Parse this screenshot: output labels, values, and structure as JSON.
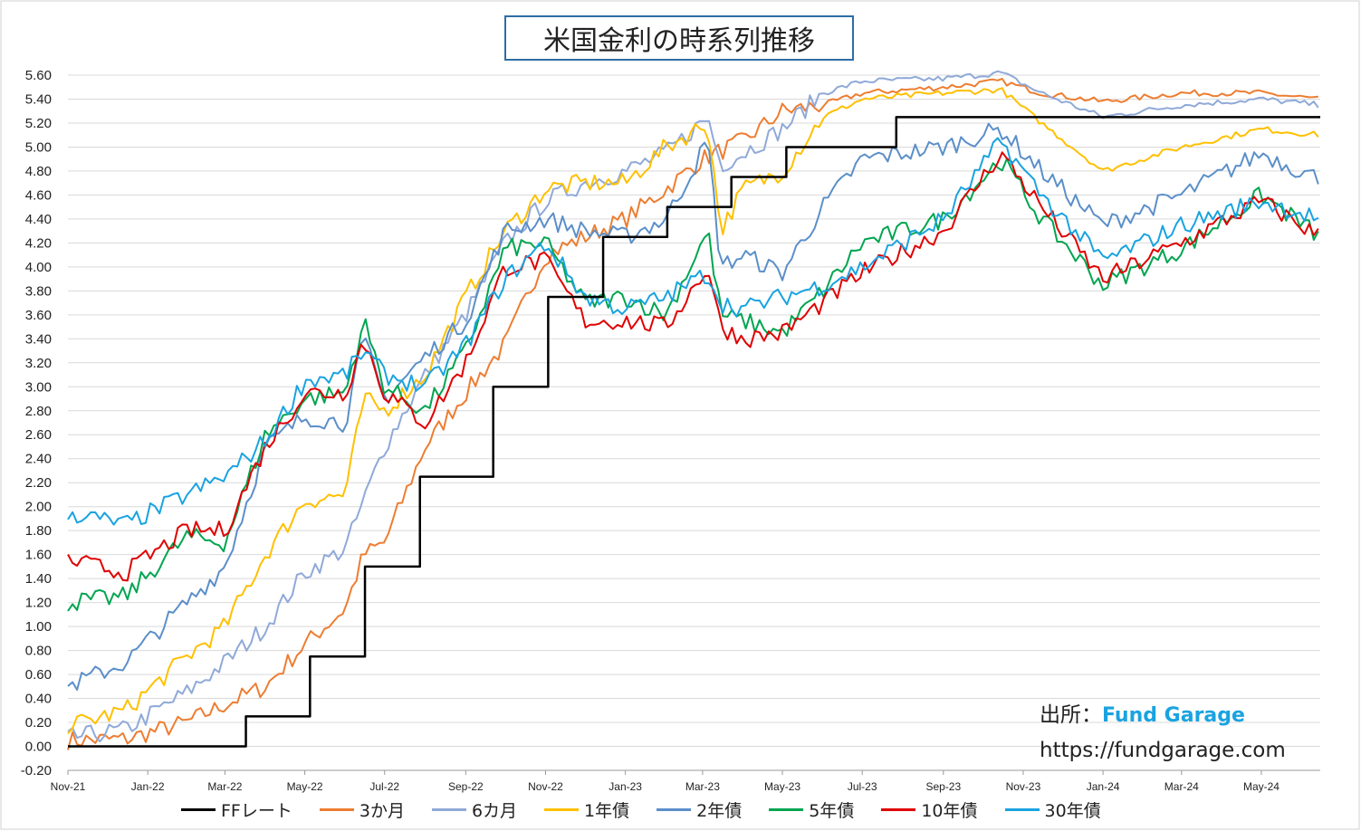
{
  "chart_data": {
    "type": "line",
    "title": "米国金利の時系列推移",
    "xlabel": "",
    "ylabel": "",
    "ylim": [
      -0.2,
      5.6
    ],
    "y_ticks": [
      "5.60",
      "5.40",
      "5.20",
      "5.00",
      "4.80",
      "4.60",
      "4.40",
      "4.20",
      "4.00",
      "3.80",
      "3.60",
      "3.40",
      "3.20",
      "3.00",
      "2.80",
      "2.60",
      "2.40",
      "2.20",
      "2.00",
      "1.80",
      "1.60",
      "1.40",
      "1.20",
      "1.00",
      "0.80",
      "0.60",
      "0.40",
      "0.20",
      "0.00",
      "-0.20"
    ],
    "x_ticks": [
      "Nov-21",
      "Jan-22",
      "Mar-22",
      "May-22",
      "Jul-22",
      "Sep-22",
      "Nov-22",
      "Jan-23",
      "Mar-23",
      "May-23",
      "Jul-23",
      "Sep-23",
      "Nov-23",
      "Jan-24",
      "Mar-24",
      "May-24"
    ],
    "x_end": "2024-06-15",
    "grid": true,
    "legend_position": "bottom",
    "series": [
      {
        "name": "FFレート",
        "color": "#000000",
        "step": true,
        "points": [
          [
            "2021-11-01",
            0.0
          ],
          [
            "2022-03-17",
            0.25
          ],
          [
            "2022-05-05",
            0.75
          ],
          [
            "2022-06-16",
            1.5
          ],
          [
            "2022-07-28",
            2.25
          ],
          [
            "2022-09-22",
            3.0
          ],
          [
            "2022-11-03",
            3.75
          ],
          [
            "2022-12-15",
            4.25
          ],
          [
            "2023-02-02",
            4.5
          ],
          [
            "2023-03-23",
            4.75
          ],
          [
            "2023-05-04",
            5.0
          ],
          [
            "2023-07-27",
            5.25
          ],
          [
            "2024-06-15",
            5.25
          ]
        ]
      },
      {
        "name": "3か月",
        "color": "#ed7d31",
        "points": [
          [
            "2021-11-01",
            0.05
          ],
          [
            "2021-12-15",
            0.06
          ],
          [
            "2022-01-31",
            0.2
          ],
          [
            "2022-03-01",
            0.35
          ],
          [
            "2022-04-01",
            0.5
          ],
          [
            "2022-05-01",
            0.85
          ],
          [
            "2022-06-01",
            1.15
          ],
          [
            "2022-06-15",
            1.6
          ],
          [
            "2022-07-01",
            1.7
          ],
          [
            "2022-08-01",
            2.5
          ],
          [
            "2022-09-01",
            2.95
          ],
          [
            "2022-10-01",
            3.35
          ],
          [
            "2022-11-01",
            4.1
          ],
          [
            "2022-12-01",
            4.25
          ],
          [
            "2023-01-01",
            4.4
          ],
          [
            "2023-02-01",
            4.65
          ],
          [
            "2023-03-01",
            4.9
          ],
          [
            "2023-04-01",
            5.05
          ],
          [
            "2023-05-01",
            5.3
          ],
          [
            "2023-06-01",
            5.35
          ],
          [
            "2023-07-01",
            5.45
          ],
          [
            "2023-09-01",
            5.5
          ],
          [
            "2023-10-15",
            5.55
          ],
          [
            "2023-11-15",
            5.45
          ],
          [
            "2024-01-01",
            5.38
          ],
          [
            "2024-03-01",
            5.45
          ],
          [
            "2024-05-01",
            5.45
          ],
          [
            "2024-06-15",
            5.4
          ]
        ]
      },
      {
        "name": "6カ月",
        "color": "#8fa9d8",
        "points": [
          [
            "2021-11-01",
            0.07
          ],
          [
            "2021-12-15",
            0.14
          ],
          [
            "2022-01-31",
            0.45
          ],
          [
            "2022-03-01",
            0.7
          ],
          [
            "2022-04-01",
            1.0
          ],
          [
            "2022-05-01",
            1.45
          ],
          [
            "2022-06-01",
            1.65
          ],
          [
            "2022-06-15",
            2.05
          ],
          [
            "2022-07-01",
            2.5
          ],
          [
            "2022-08-01",
            3.1
          ],
          [
            "2022-09-01",
            3.6
          ],
          [
            "2022-10-01",
            4.2
          ],
          [
            "2022-11-01",
            4.55
          ],
          [
            "2022-12-01",
            4.7
          ],
          [
            "2023-01-01",
            4.8
          ],
          [
            "2023-02-01",
            4.95
          ],
          [
            "2023-03-05",
            5.25
          ],
          [
            "2023-03-15",
            4.85
          ],
          [
            "2023-04-01",
            4.95
          ],
          [
            "2023-05-01",
            5.15
          ],
          [
            "2023-06-01",
            5.45
          ],
          [
            "2023-07-01",
            5.55
          ],
          [
            "2023-09-01",
            5.57
          ],
          [
            "2023-10-15",
            5.62
          ],
          [
            "2023-11-15",
            5.45
          ],
          [
            "2024-01-01",
            5.25
          ],
          [
            "2024-03-01",
            5.35
          ],
          [
            "2024-05-01",
            5.4
          ],
          [
            "2024-06-15",
            5.35
          ]
        ]
      },
      {
        "name": "1年債",
        "color": "#ffc000",
        "points": [
          [
            "2021-11-01",
            0.17
          ],
          [
            "2021-12-15",
            0.3
          ],
          [
            "2022-01-31",
            0.75
          ],
          [
            "2022-03-01",
            1.0
          ],
          [
            "2022-04-01",
            1.6
          ],
          [
            "2022-05-01",
            2.05
          ],
          [
            "2022-06-01",
            2.1
          ],
          [
            "2022-06-15",
            2.9
          ],
          [
            "2022-07-01",
            2.8
          ],
          [
            "2022-08-01",
            3.1
          ],
          [
            "2022-09-01",
            3.75
          ],
          [
            "2022-10-01",
            4.3
          ],
          [
            "2022-11-01",
            4.65
          ],
          [
            "2022-12-01",
            4.7
          ],
          [
            "2023-01-01",
            4.7
          ],
          [
            "2023-02-01",
            5.0
          ],
          [
            "2023-03-05",
            5.2
          ],
          [
            "2023-03-15",
            4.3
          ],
          [
            "2023-04-01",
            4.65
          ],
          [
            "2023-05-01",
            4.8
          ],
          [
            "2023-06-01",
            5.25
          ],
          [
            "2023-07-01",
            5.4
          ],
          [
            "2023-09-01",
            5.45
          ],
          [
            "2023-10-15",
            5.48
          ],
          [
            "2023-11-15",
            5.2
          ],
          [
            "2024-01-01",
            4.8
          ],
          [
            "2024-03-01",
            5.0
          ],
          [
            "2024-05-01",
            5.15
          ],
          [
            "2024-06-15",
            5.1
          ]
        ]
      },
      {
        "name": "2年債",
        "color": "#5b8fc9",
        "points": [
          [
            "2021-11-01",
            0.5
          ],
          [
            "2021-12-15",
            0.7
          ],
          [
            "2022-01-31",
            1.2
          ],
          [
            "2022-03-01",
            1.5
          ],
          [
            "2022-04-01",
            2.5
          ],
          [
            "2022-05-01",
            2.75
          ],
          [
            "2022-06-01",
            2.7
          ],
          [
            "2022-06-15",
            3.4
          ],
          [
            "2022-07-01",
            2.9
          ],
          [
            "2022-08-01",
            3.25
          ],
          [
            "2022-09-01",
            3.55
          ],
          [
            "2022-10-01",
            4.3
          ],
          [
            "2022-11-01",
            4.4
          ],
          [
            "2022-12-01",
            4.3
          ],
          [
            "2023-01-01",
            4.25
          ],
          [
            "2023-02-01",
            4.4
          ],
          [
            "2023-03-05",
            5.05
          ],
          [
            "2023-03-15",
            4.0
          ],
          [
            "2023-04-01",
            4.1
          ],
          [
            "2023-05-01",
            3.95
          ],
          [
            "2023-06-01",
            4.5
          ],
          [
            "2023-07-01",
            4.9
          ],
          [
            "2023-09-01",
            5.0
          ],
          [
            "2023-10-15",
            5.15
          ],
          [
            "2023-11-15",
            4.8
          ],
          [
            "2024-01-01",
            4.35
          ],
          [
            "2024-03-01",
            4.6
          ],
          [
            "2024-05-01",
            4.95
          ],
          [
            "2024-06-15",
            4.73
          ]
        ]
      },
      {
        "name": "5年債",
        "color": "#00a550",
        "points": [
          [
            "2021-11-01",
            1.2
          ],
          [
            "2021-12-15",
            1.25
          ],
          [
            "2022-01-31",
            1.75
          ],
          [
            "2022-03-01",
            1.7
          ],
          [
            "2022-04-01",
            2.6
          ],
          [
            "2022-05-01",
            2.9
          ],
          [
            "2022-06-01",
            2.95
          ],
          [
            "2022-06-15",
            3.55
          ],
          [
            "2022-07-01",
            3.0
          ],
          [
            "2022-08-01",
            2.8
          ],
          [
            "2022-09-01",
            3.3
          ],
          [
            "2022-10-01",
            4.15
          ],
          [
            "2022-11-01",
            4.2
          ],
          [
            "2022-12-01",
            3.7
          ],
          [
            "2023-01-01",
            3.75
          ],
          [
            "2023-02-01",
            3.6
          ],
          [
            "2023-03-05",
            4.3
          ],
          [
            "2023-03-15",
            3.6
          ],
          [
            "2023-04-01",
            3.55
          ],
          [
            "2023-05-01",
            3.45
          ],
          [
            "2023-06-01",
            3.8
          ],
          [
            "2023-07-01",
            4.2
          ],
          [
            "2023-09-01",
            4.4
          ],
          [
            "2023-10-15",
            4.9
          ],
          [
            "2023-11-15",
            4.4
          ],
          [
            "2024-01-01",
            3.85
          ],
          [
            "2024-03-01",
            4.15
          ],
          [
            "2024-05-01",
            4.6
          ],
          [
            "2024-06-15",
            4.25
          ]
        ]
      },
      {
        "name": "10年債",
        "color": "#e00000",
        "points": [
          [
            "2021-11-01",
            1.55
          ],
          [
            "2021-12-15",
            1.45
          ],
          [
            "2022-01-31",
            1.8
          ],
          [
            "2022-03-01",
            1.8
          ],
          [
            "2022-04-01",
            2.5
          ],
          [
            "2022-05-01",
            2.95
          ],
          [
            "2022-06-01",
            2.95
          ],
          [
            "2022-06-15",
            3.4
          ],
          [
            "2022-07-01",
            2.95
          ],
          [
            "2022-08-01",
            2.7
          ],
          [
            "2022-09-01",
            3.2
          ],
          [
            "2022-10-01",
            4.0
          ],
          [
            "2022-11-01",
            4.05
          ],
          [
            "2022-12-01",
            3.55
          ],
          [
            "2023-01-01",
            3.55
          ],
          [
            "2023-02-01",
            3.5
          ],
          [
            "2023-03-05",
            4.0
          ],
          [
            "2023-03-15",
            3.5
          ],
          [
            "2023-04-01",
            3.4
          ],
          [
            "2023-05-01",
            3.45
          ],
          [
            "2023-06-01",
            3.7
          ],
          [
            "2023-07-01",
            3.95
          ],
          [
            "2023-09-01",
            4.3
          ],
          [
            "2023-10-15",
            4.95
          ],
          [
            "2023-11-15",
            4.5
          ],
          [
            "2024-01-01",
            3.9
          ],
          [
            "2024-03-01",
            4.2
          ],
          [
            "2024-05-01",
            4.55
          ],
          [
            "2024-06-15",
            4.25
          ]
        ]
      },
      {
        "name": "30年債",
        "color": "#1aa3e0",
        "points": [
          [
            "2021-11-01",
            1.95
          ],
          [
            "2021-12-15",
            1.85
          ],
          [
            "2022-01-31",
            2.1
          ],
          [
            "2022-03-01",
            2.25
          ],
          [
            "2022-04-01",
            2.55
          ],
          [
            "2022-05-01",
            3.05
          ],
          [
            "2022-06-01",
            3.1
          ],
          [
            "2022-06-15",
            3.3
          ],
          [
            "2022-07-01",
            3.1
          ],
          [
            "2022-08-01",
            3.0
          ],
          [
            "2022-09-01",
            3.35
          ],
          [
            "2022-10-01",
            3.9
          ],
          [
            "2022-11-01",
            4.2
          ],
          [
            "2022-12-01",
            3.75
          ],
          [
            "2023-01-01",
            3.65
          ],
          [
            "2023-02-01",
            3.75
          ],
          [
            "2023-03-05",
            3.95
          ],
          [
            "2023-03-15",
            3.7
          ],
          [
            "2023-04-01",
            3.65
          ],
          [
            "2023-05-01",
            3.75
          ],
          [
            "2023-06-01",
            3.85
          ],
          [
            "2023-07-01",
            4.0
          ],
          [
            "2023-09-01",
            4.4
          ],
          [
            "2023-10-15",
            5.05
          ],
          [
            "2023-11-15",
            4.6
          ],
          [
            "2024-01-01",
            4.05
          ],
          [
            "2024-03-01",
            4.35
          ],
          [
            "2024-05-01",
            4.55
          ],
          [
            "2024-06-15",
            4.4
          ]
        ]
      }
    ]
  },
  "source": {
    "label": "出所：",
    "name": "Fund Garage",
    "url": "https://fundgarage.com"
  }
}
